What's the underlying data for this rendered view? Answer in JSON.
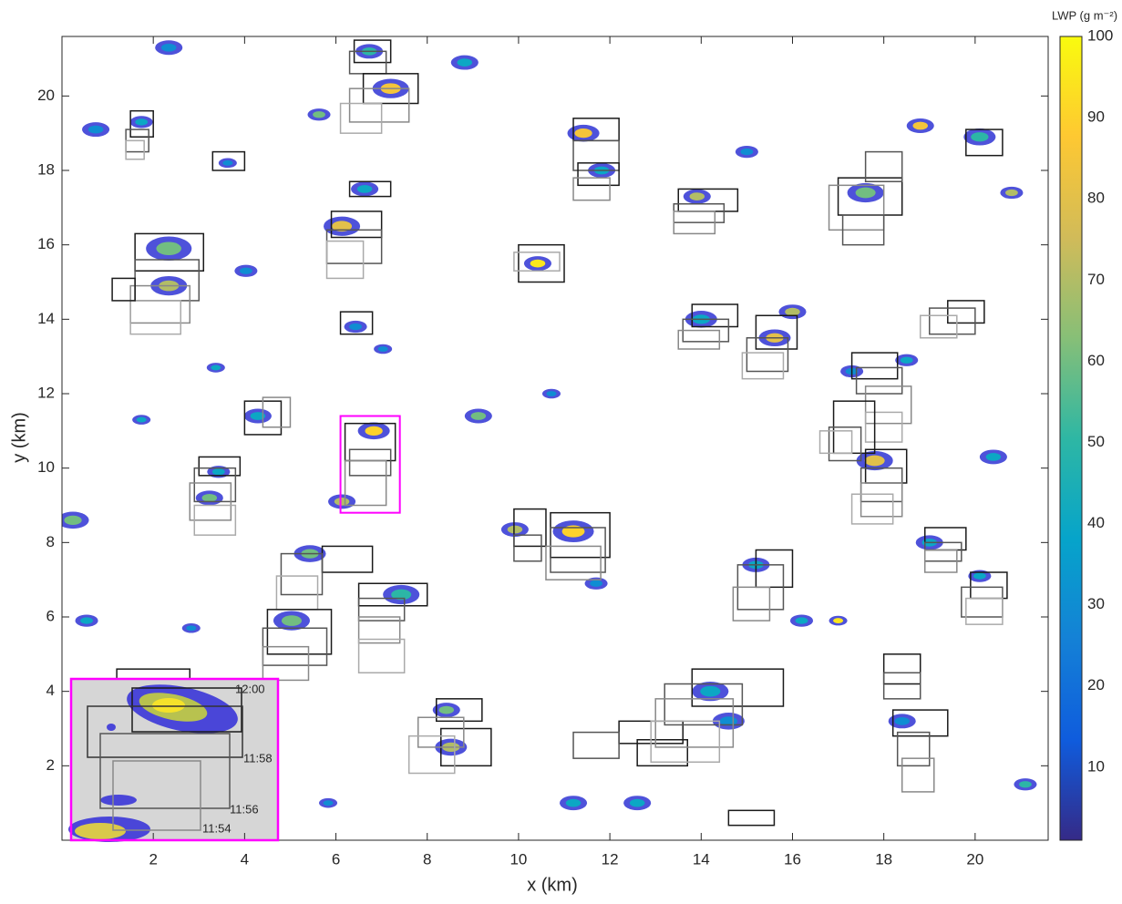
{
  "chart_data": {
    "type": "cloud-field",
    "x_label": "x (km)",
    "y_label": "y (km)",
    "colorbar_label": "LWP (g m⁻²)",
    "xlim": [
      0,
      21.6
    ],
    "ylim": [
      0,
      21.6
    ],
    "xticks": [
      2,
      4,
      6,
      8,
      10,
      12,
      14,
      16,
      18,
      20
    ],
    "yticks": [
      2,
      4,
      6,
      8,
      10,
      12,
      14,
      16,
      18,
      20
    ],
    "clim": [
      1,
      100
    ],
    "cticks": [
      10,
      20,
      30,
      40,
      50,
      60,
      70,
      80,
      90,
      100
    ],
    "colormap": [
      "#352a87",
      "#0f5cdd",
      "#1481d6",
      "#06a4ca",
      "#2eb7a4",
      "#87bf77",
      "#d1bb59",
      "#fec832",
      "#f9fb0e"
    ],
    "cloud_edge_color": "#3b3fd6",
    "clouds": {
      "x": [
        6.73,
        7.2,
        5.63,
        1.74,
        0.74,
        3.63,
        6.63,
        6.13,
        2.34,
        2.34,
        4.03,
        6.43,
        7.03,
        3.37,
        4.29,
        6.83,
        1.74,
        3.43,
        3.23,
        6.13,
        5.43,
        7.43,
        5.03,
        2.83,
        8.42,
        8.52,
        9.92,
        11.2,
        10.42,
        11.42,
        11.82,
        9.12,
        10.72,
        13.91,
        14.0,
        15.61,
        16.0,
        17.3,
        18.5,
        17.6,
        18.8,
        20.1,
        20.8,
        17.8,
        20.4,
        19.0,
        20.1,
        17.0,
        16.2,
        15.2,
        14.2,
        14.6,
        18.4,
        12.6,
        11.2,
        0.24,
        0.54,
        21.1,
        11.7,
        15.0,
        2.34,
        8.82,
        5.83
      ],
      "y": [
        21.2,
        20.2,
        19.5,
        19.3,
        19.1,
        18.2,
        17.5,
        16.5,
        15.9,
        14.9,
        15.3,
        13.8,
        13.2,
        12.7,
        11.4,
        11.0,
        11.3,
        9.9,
        9.2,
        9.1,
        7.7,
        6.6,
        5.9,
        5.7,
        3.5,
        2.5,
        8.35,
        8.3,
        15.5,
        19.0,
        18.0,
        11.4,
        12.0,
        17.3,
        14.0,
        13.5,
        14.2,
        12.6,
        12.9,
        17.4,
        19.2,
        18.9,
        17.4,
        10.2,
        10.3,
        8.0,
        7.1,
        5.9,
        5.9,
        7.4,
        4.0,
        3.2,
        3.2,
        1.0,
        1.0,
        8.6,
        5.9,
        1.5,
        6.9,
        18.5,
        21.3,
        20.9,
        1.0
      ],
      "values": [
        50,
        85,
        60,
        40,
        30,
        30,
        40,
        80,
        60,
        70,
        30,
        30,
        30,
        40,
        40,
        90,
        40,
        40,
        60,
        70,
        60,
        50,
        60,
        30,
        60,
        70,
        70,
        90,
        95,
        85,
        40,
        60,
        30,
        70,
        40,
        80,
        70,
        30,
        40,
        60,
        85,
        50,
        70,
        80,
        40,
        40,
        40,
        95,
        40,
        40,
        40,
        30,
        30,
        40,
        40,
        60,
        40,
        50,
        30,
        30,
        30,
        40,
        30
      ],
      "sizes": [
        0.3,
        0.4,
        0.25,
        0.25,
        0.3,
        0.2,
        0.3,
        0.4,
        0.5,
        0.4,
        0.25,
        0.25,
        0.2,
        0.2,
        0.3,
        0.35,
        0.2,
        0.25,
        0.3,
        0.3,
        0.35,
        0.4,
        0.4,
        0.2,
        0.3,
        0.35,
        0.3,
        0.45,
        0.3,
        0.35,
        0.3,
        0.3,
        0.2,
        0.3,
        0.35,
        0.35,
        0.3,
        0.25,
        0.25,
        0.4,
        0.3,
        0.35,
        0.25,
        0.4,
        0.3,
        0.3,
        0.25,
        0.2,
        0.25,
        0.3,
        0.4,
        0.35,
        0.3,
        0.3,
        0.3,
        0.35,
        0.25,
        0.25,
        0.25,
        0.25,
        0.3,
        0.3,
        0.2
      ]
    },
    "box_colors": [
      "#1a1a1a",
      "#555555",
      "#888888",
      "#aaaaaa"
    ],
    "boxes": [
      [
        6.4,
        20.9,
        7.2,
        21.5,
        0
      ],
      [
        6.3,
        20.6,
        7.1,
        21.2,
        1
      ],
      [
        6.6,
        19.8,
        7.8,
        20.6,
        0
      ],
      [
        6.3,
        19.3,
        7.6,
        20.2,
        2
      ],
      [
        6.1,
        19.0,
        7.0,
        19.8,
        3
      ],
      [
        1.5,
        18.9,
        2.0,
        19.6,
        0
      ],
      [
        1.4,
        18.5,
        1.9,
        19.1,
        1
      ],
      [
        1.4,
        18.3,
        1.8,
        18.8,
        3
      ],
      [
        3.3,
        18.0,
        4.0,
        18.5,
        0
      ],
      [
        6.3,
        17.3,
        7.2,
        17.7,
        0
      ],
      [
        5.9,
        16.2,
        7.0,
        16.9,
        0
      ],
      [
        5.8,
        15.5,
        7.0,
        16.4,
        1
      ],
      [
        5.8,
        15.1,
        6.6,
        16.1,
        3
      ],
      [
        1.6,
        15.3,
        3.1,
        16.3,
        0
      ],
      [
        1.6,
        14.5,
        3.0,
        15.6,
        1
      ],
      [
        1.5,
        13.9,
        2.8,
        14.9,
        2
      ],
      [
        1.5,
        13.6,
        2.6,
        14.5,
        3
      ],
      [
        1.1,
        14.5,
        1.6,
        15.1,
        0
      ],
      [
        6.1,
        13.6,
        6.8,
        14.2,
        0
      ],
      [
        4.0,
        10.9,
        4.8,
        11.8,
        0
      ],
      [
        4.4,
        11.1,
        5.0,
        11.9,
        2
      ],
      [
        3.0,
        9.8,
        3.9,
        10.3,
        0
      ],
      [
        2.9,
        9.1,
        3.8,
        10.0,
        1
      ],
      [
        2.8,
        8.6,
        3.7,
        9.6,
        2
      ],
      [
        2.9,
        8.2,
        3.8,
        9.0,
        3
      ],
      [
        6.2,
        10.2,
        7.3,
        11.2,
        0
      ],
      [
        6.3,
        9.8,
        7.2,
        10.5,
        1
      ],
      [
        6.2,
        9.0,
        7.1,
        10.2,
        2
      ],
      [
        9.9,
        7.9,
        10.6,
        8.9,
        0
      ],
      [
        9.9,
        7.5,
        10.5,
        8.2,
        1
      ],
      [
        10.7,
        7.6,
        12.0,
        8.8,
        0
      ],
      [
        10.7,
        7.2,
        11.9,
        8.4,
        1
      ],
      [
        10.6,
        7.0,
        11.8,
        7.9,
        2
      ],
      [
        5.7,
        7.2,
        6.8,
        7.9,
        0
      ],
      [
        4.8,
        6.6,
        5.7,
        7.7,
        1
      ],
      [
        4.7,
        6.2,
        5.6,
        7.1,
        3
      ],
      [
        4.5,
        5.0,
        5.9,
        6.2,
        0
      ],
      [
        4.4,
        4.7,
        5.8,
        5.7,
        1
      ],
      [
        4.4,
        4.3,
        5.4,
        5.2,
        2
      ],
      [
        6.5,
        6.3,
        8.0,
        6.9,
        0
      ],
      [
        6.5,
        5.9,
        7.5,
        6.5,
        1
      ],
      [
        6.5,
        5.3,
        7.4,
        6.0,
        2
      ],
      [
        6.5,
        4.5,
        7.5,
        5.4,
        3
      ],
      [
        8.2,
        3.2,
        9.2,
        3.8,
        0
      ],
      [
        8.3,
        2.0,
        9.4,
        3.0,
        0
      ],
      [
        7.8,
        2.5,
        8.8,
        3.3,
        2
      ],
      [
        7.6,
        1.8,
        8.6,
        2.8,
        3
      ],
      [
        12.2,
        2.6,
        13.6,
        3.2,
        0
      ],
      [
        12.6,
        2.0,
        13.7,
        2.7,
        0
      ],
      [
        11.2,
        2.2,
        12.2,
        2.9,
        1
      ],
      [
        13.8,
        3.6,
        15.8,
        4.6,
        0
      ],
      [
        13.2,
        3.1,
        14.9,
        4.2,
        1
      ],
      [
        13.0,
        2.5,
        14.7,
        3.8,
        2
      ],
      [
        12.9,
        2.1,
        14.4,
        3.2,
        3
      ],
      [
        14.6,
        0.4,
        15.6,
        0.8,
        0
      ],
      [
        13.8,
        13.8,
        14.8,
        14.4,
        0
      ],
      [
        13.6,
        13.4,
        14.6,
        14.0,
        1
      ],
      [
        13.5,
        13.2,
        14.4,
        13.7,
        2
      ],
      [
        15.2,
        13.2,
        16.1,
        14.1,
        0
      ],
      [
        15.0,
        12.6,
        15.9,
        13.5,
        1
      ],
      [
        14.9,
        12.4,
        15.8,
        13.1,
        3
      ],
      [
        13.5,
        16.9,
        14.8,
        17.5,
        0
      ],
      [
        13.4,
        16.6,
        14.5,
        17.1,
        1
      ],
      [
        13.4,
        16.3,
        14.3,
        16.9,
        2
      ],
      [
        11.2,
        18.8,
        12.2,
        19.4,
        0
      ],
      [
        11.2,
        18.0,
        12.2,
        18.8,
        1
      ],
      [
        11.3,
        17.6,
        12.2,
        18.2,
        0
      ],
      [
        11.2,
        17.2,
        12.0,
        17.8,
        2
      ],
      [
        10.0,
        15.0,
        11.0,
        16.0,
        0
      ],
      [
        9.9,
        15.3,
        10.9,
        15.8,
        3
      ],
      [
        17.0,
        16.8,
        18.4,
        17.8,
        0
      ],
      [
        16.8,
        16.4,
        18.0,
        17.6,
        2
      ],
      [
        17.1,
        16.0,
        18.0,
        16.8,
        1
      ],
      [
        17.6,
        17.7,
        18.4,
        18.5,
        1
      ],
      [
        17.3,
        12.4,
        18.3,
        13.1,
        0
      ],
      [
        17.4,
        12.0,
        18.4,
        12.7,
        1
      ],
      [
        17.6,
        11.2,
        18.6,
        12.2,
        2
      ],
      [
        17.6,
        10.7,
        18.4,
        11.5,
        3
      ],
      [
        16.9,
        10.4,
        17.8,
        11.8,
        0
      ],
      [
        16.8,
        10.2,
        17.5,
        11.1,
        1
      ],
      [
        16.6,
        10.4,
        17.3,
        11.0,
        3
      ],
      [
        17.6,
        9.6,
        18.5,
        10.5,
        0
      ],
      [
        17.5,
        9.1,
        18.4,
        10.0,
        1
      ],
      [
        17.5,
        8.7,
        18.4,
        9.6,
        2
      ],
      [
        17.3,
        8.5,
        18.2,
        9.3,
        3
      ],
      [
        18.9,
        7.8,
        19.8,
        8.4,
        0
      ],
      [
        18.9,
        7.5,
        19.7,
        8.0,
        1
      ],
      [
        18.9,
        7.2,
        19.6,
        7.8,
        2
      ],
      [
        19.4,
        13.9,
        20.2,
        14.5,
        0
      ],
      [
        19.0,
        13.6,
        20.0,
        14.3,
        1
      ],
      [
        18.8,
        13.5,
        19.6,
        14.1,
        3
      ],
      [
        19.8,
        18.4,
        20.6,
        19.1,
        0
      ],
      [
        18.0,
        4.2,
        18.8,
        5.0,
        0
      ],
      [
        18.0,
        3.8,
        18.8,
        4.5,
        1
      ],
      [
        18.2,
        2.8,
        19.4,
        3.5,
        0
      ],
      [
        18.3,
        2.0,
        19.0,
        2.9,
        1
      ],
      [
        18.4,
        1.3,
        19.1,
        2.2,
        2
      ],
      [
        19.9,
        6.5,
        20.7,
        7.2,
        0
      ],
      [
        19.7,
        6.0,
        20.6,
        6.8,
        1
      ],
      [
        19.8,
        5.8,
        20.6,
        6.5,
        3
      ],
      [
        15.2,
        6.8,
        16.0,
        7.8,
        0
      ],
      [
        14.8,
        6.2,
        15.8,
        7.4,
        1
      ],
      [
        14.7,
        5.9,
        15.5,
        6.8,
        2
      ],
      [
        1.2,
        4.0,
        2.8,
        4.6,
        0
      ]
    ],
    "highlight_box": [
      6.1,
      8.8,
      7.4,
      11.4
    ],
    "highlight_color": "#ff00ff",
    "inset_labels": [
      "12:00",
      "11:58",
      "11:56",
      "11:54"
    ],
    "inset_label_colors": [
      "#1a1a1a",
      "#333333",
      "#555555",
      "#888888"
    ]
  }
}
